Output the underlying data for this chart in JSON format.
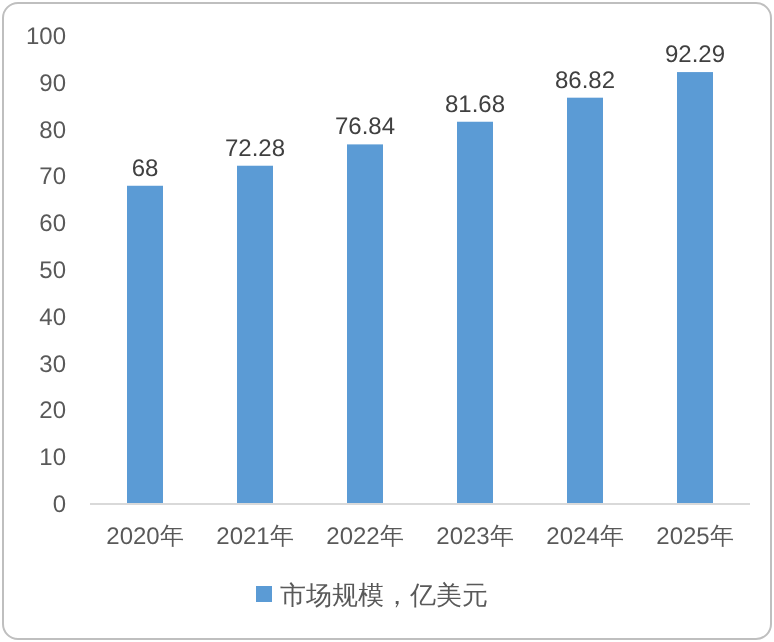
{
  "chart_data": {
    "type": "bar",
    "categories": [
      "2020年",
      "2021年",
      "2022年",
      "2023年",
      "2024年",
      "2025年"
    ],
    "series": [
      {
        "name": "市场规模，亿美元",
        "color": "#5b9bd5",
        "values": [
          68,
          72.28,
          76.84,
          81.68,
          86.82,
          92.29
        ]
      }
    ],
    "ylim": [
      0,
      100
    ],
    "yticks": [
      0,
      10,
      20,
      30,
      40,
      50,
      60,
      70,
      80,
      90,
      100
    ],
    "data_labels": true,
    "legend": "bottom",
    "grid": false
  }
}
